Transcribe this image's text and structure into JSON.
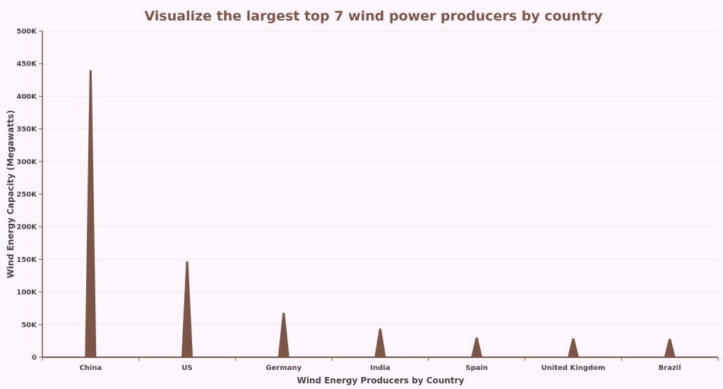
{
  "chart_data": {
    "type": "bar",
    "bar_shape": "triangle",
    "title": "Visualize the largest top 7 wind power producers by country",
    "xlabel": "Wind Energy Producers by Country",
    "ylabel": "Wind Energy Capacity (Megawatts)",
    "categories": [
      "China",
      "US",
      "Germany",
      "India",
      "Spain",
      "United Kingdom",
      "Brazil"
    ],
    "values": [
      440000,
      147000,
      68000,
      44000,
      30000,
      29000,
      28000
    ],
    "ylim": [
      0,
      500000
    ],
    "yticks": [
      0,
      50000,
      100000,
      150000,
      200000,
      250000,
      300000,
      350000,
      400000,
      450000,
      500000
    ],
    "ytick_labels": [
      "0",
      "50K",
      "100K",
      "150K",
      "200K",
      "250K",
      "300K",
      "350K",
      "400K",
      "450K",
      "500K"
    ],
    "grid": true,
    "legend": "none",
    "colors": {
      "bar": "#7a5548",
      "axis": "#7a5548",
      "title": "#7a5548",
      "grid": "#efe7ef"
    }
  }
}
